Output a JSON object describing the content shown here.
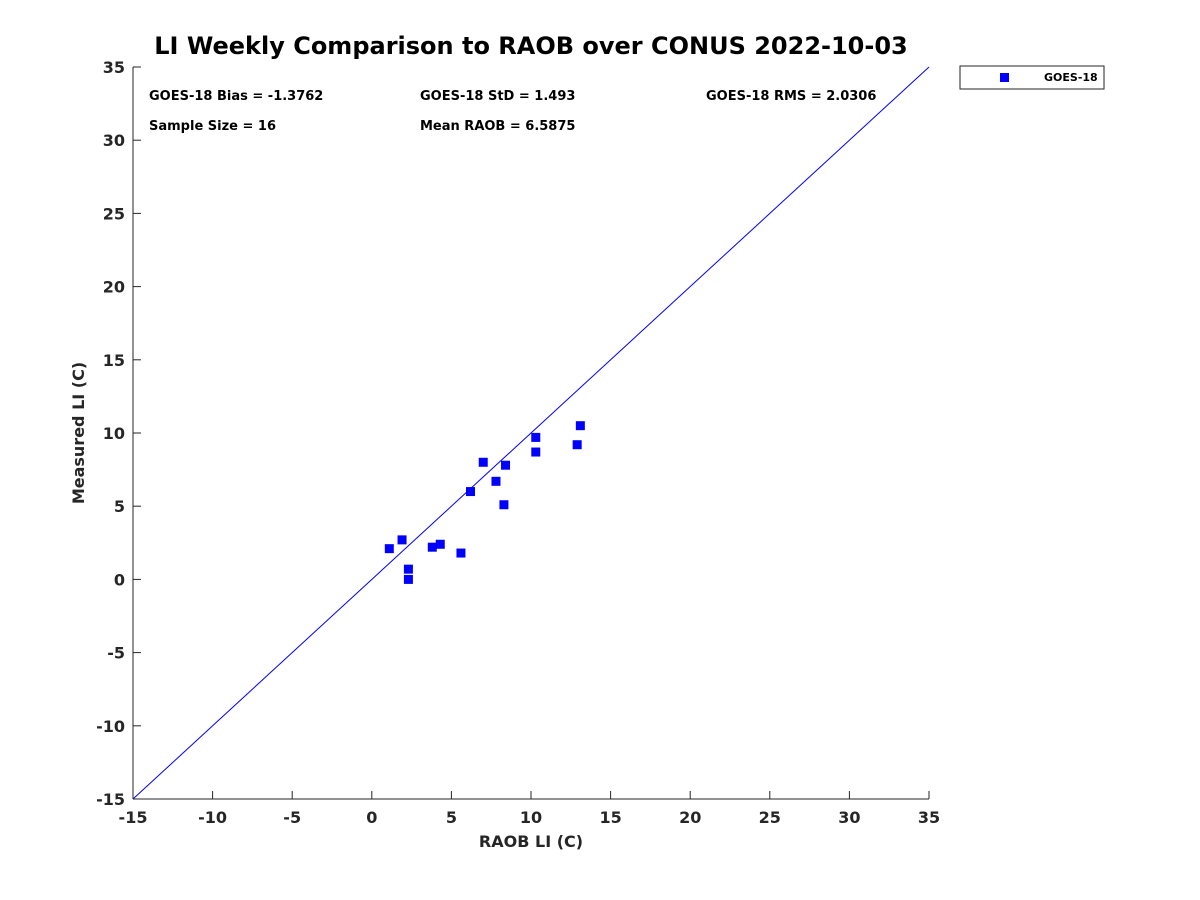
{
  "chart_data": {
    "type": "scatter",
    "title": "LI Weekly Comparison to RAOB over CONUS 2022-10-03",
    "xlabel": "RAOB LI (C)",
    "ylabel": "Measured LI (C)",
    "xlim": [
      -15,
      35
    ],
    "ylim": [
      -15,
      35
    ],
    "xticks": [
      -15,
      -10,
      -5,
      0,
      5,
      10,
      15,
      20,
      25,
      30,
      35
    ],
    "yticks": [
      -15,
      -10,
      -5,
      0,
      5,
      10,
      15,
      20,
      25,
      30,
      35
    ],
    "grid": false,
    "legend_position": "top-right outside",
    "reference_line": {
      "from": [
        -15,
        -15
      ],
      "to": [
        35,
        35
      ],
      "color": "#0000ff"
    },
    "series": [
      {
        "name": "GOES-18",
        "marker": "square",
        "color": "#0000ff",
        "points": [
          [
            1.1,
            2.1
          ],
          [
            1.9,
            2.7
          ],
          [
            2.3,
            0.7
          ],
          [
            2.3,
            0.0
          ],
          [
            3.8,
            2.2
          ],
          [
            4.3,
            2.4
          ],
          [
            5.6,
            1.8
          ],
          [
            6.2,
            6.0
          ],
          [
            7.0,
            8.0
          ],
          [
            7.8,
            6.7
          ],
          [
            8.3,
            5.1
          ],
          [
            8.4,
            7.8
          ],
          [
            10.3,
            9.7
          ],
          [
            10.3,
            8.7
          ],
          [
            12.9,
            9.2
          ],
          [
            13.1,
            10.5
          ]
        ]
      }
    ],
    "annotations": {
      "bias": "GOES-18 Bias = -1.3762",
      "std": "GOES-18 StD = 1.493",
      "rms": "GOES-18 RMS = 2.0306",
      "sample_size": "Sample Size = 16",
      "mean_raob": "Mean RAOB = 6.5875"
    }
  }
}
